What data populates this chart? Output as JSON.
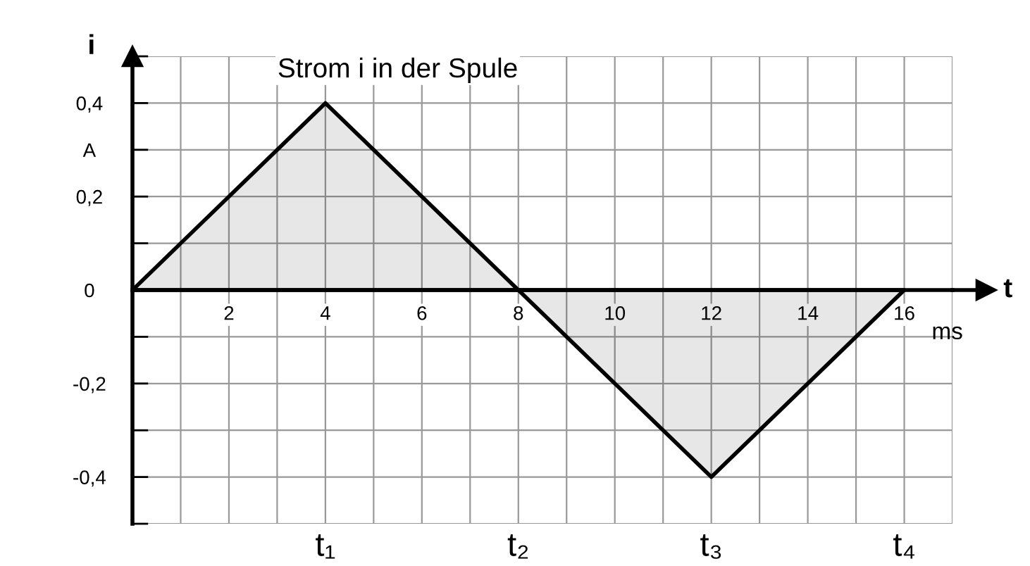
{
  "chart_data": {
    "type": "area",
    "title": "Strom i in der Spule",
    "xlabel": "t",
    "ylabel": "i",
    "x": [
      0,
      4,
      8,
      12,
      16
    ],
    "series": [
      {
        "color": "#000000",
        "values": [
          0,
          0.4,
          0,
          -0.4,
          0
        ]
      }
    ],
    "xlim": [
      0,
      17
    ],
    "ylim": [
      -0.5,
      0.5
    ],
    "xticks": [
      {
        "value": 1,
        "label": null
      },
      2,
      {
        "value": 3,
        "label": null
      },
      4,
      {
        "value": 5,
        "label": null
      },
      6,
      {
        "value": 7,
        "label": null
      },
      8,
      {
        "value": 9,
        "label": null
      },
      10,
      {
        "value": 11,
        "label": null
      },
      12,
      {
        "value": 13,
        "label": null
      },
      14,
      {
        "value": 15,
        "label": null
      },
      16,
      {
        "value": 17,
        "label": null
      }
    ],
    "yticks": [
      {
        "value": -0.5,
        "label": null
      },
      {
        "value": -0.4,
        "label": "-0,4"
      },
      {
        "value": -0.3,
        "label": null
      },
      {
        "value": -0.2,
        "label": "-0,2"
      },
      {
        "value": -0.1,
        "label": null
      },
      0,
      {
        "value": 0.1,
        "label": null
      },
      {
        "value": 0.2,
        "label": "0,2"
      },
      {
        "value": 0.3,
        "label": "A"
      },
      {
        "value": 0.4,
        "label": "0,4"
      },
      {
        "value": 0.5,
        "label": null
      }
    ],
    "grid": true,
    "annotations": [
      "ms",
      "t₁",
      "t₂",
      "t₃",
      "t₄"
    ]
  }
}
